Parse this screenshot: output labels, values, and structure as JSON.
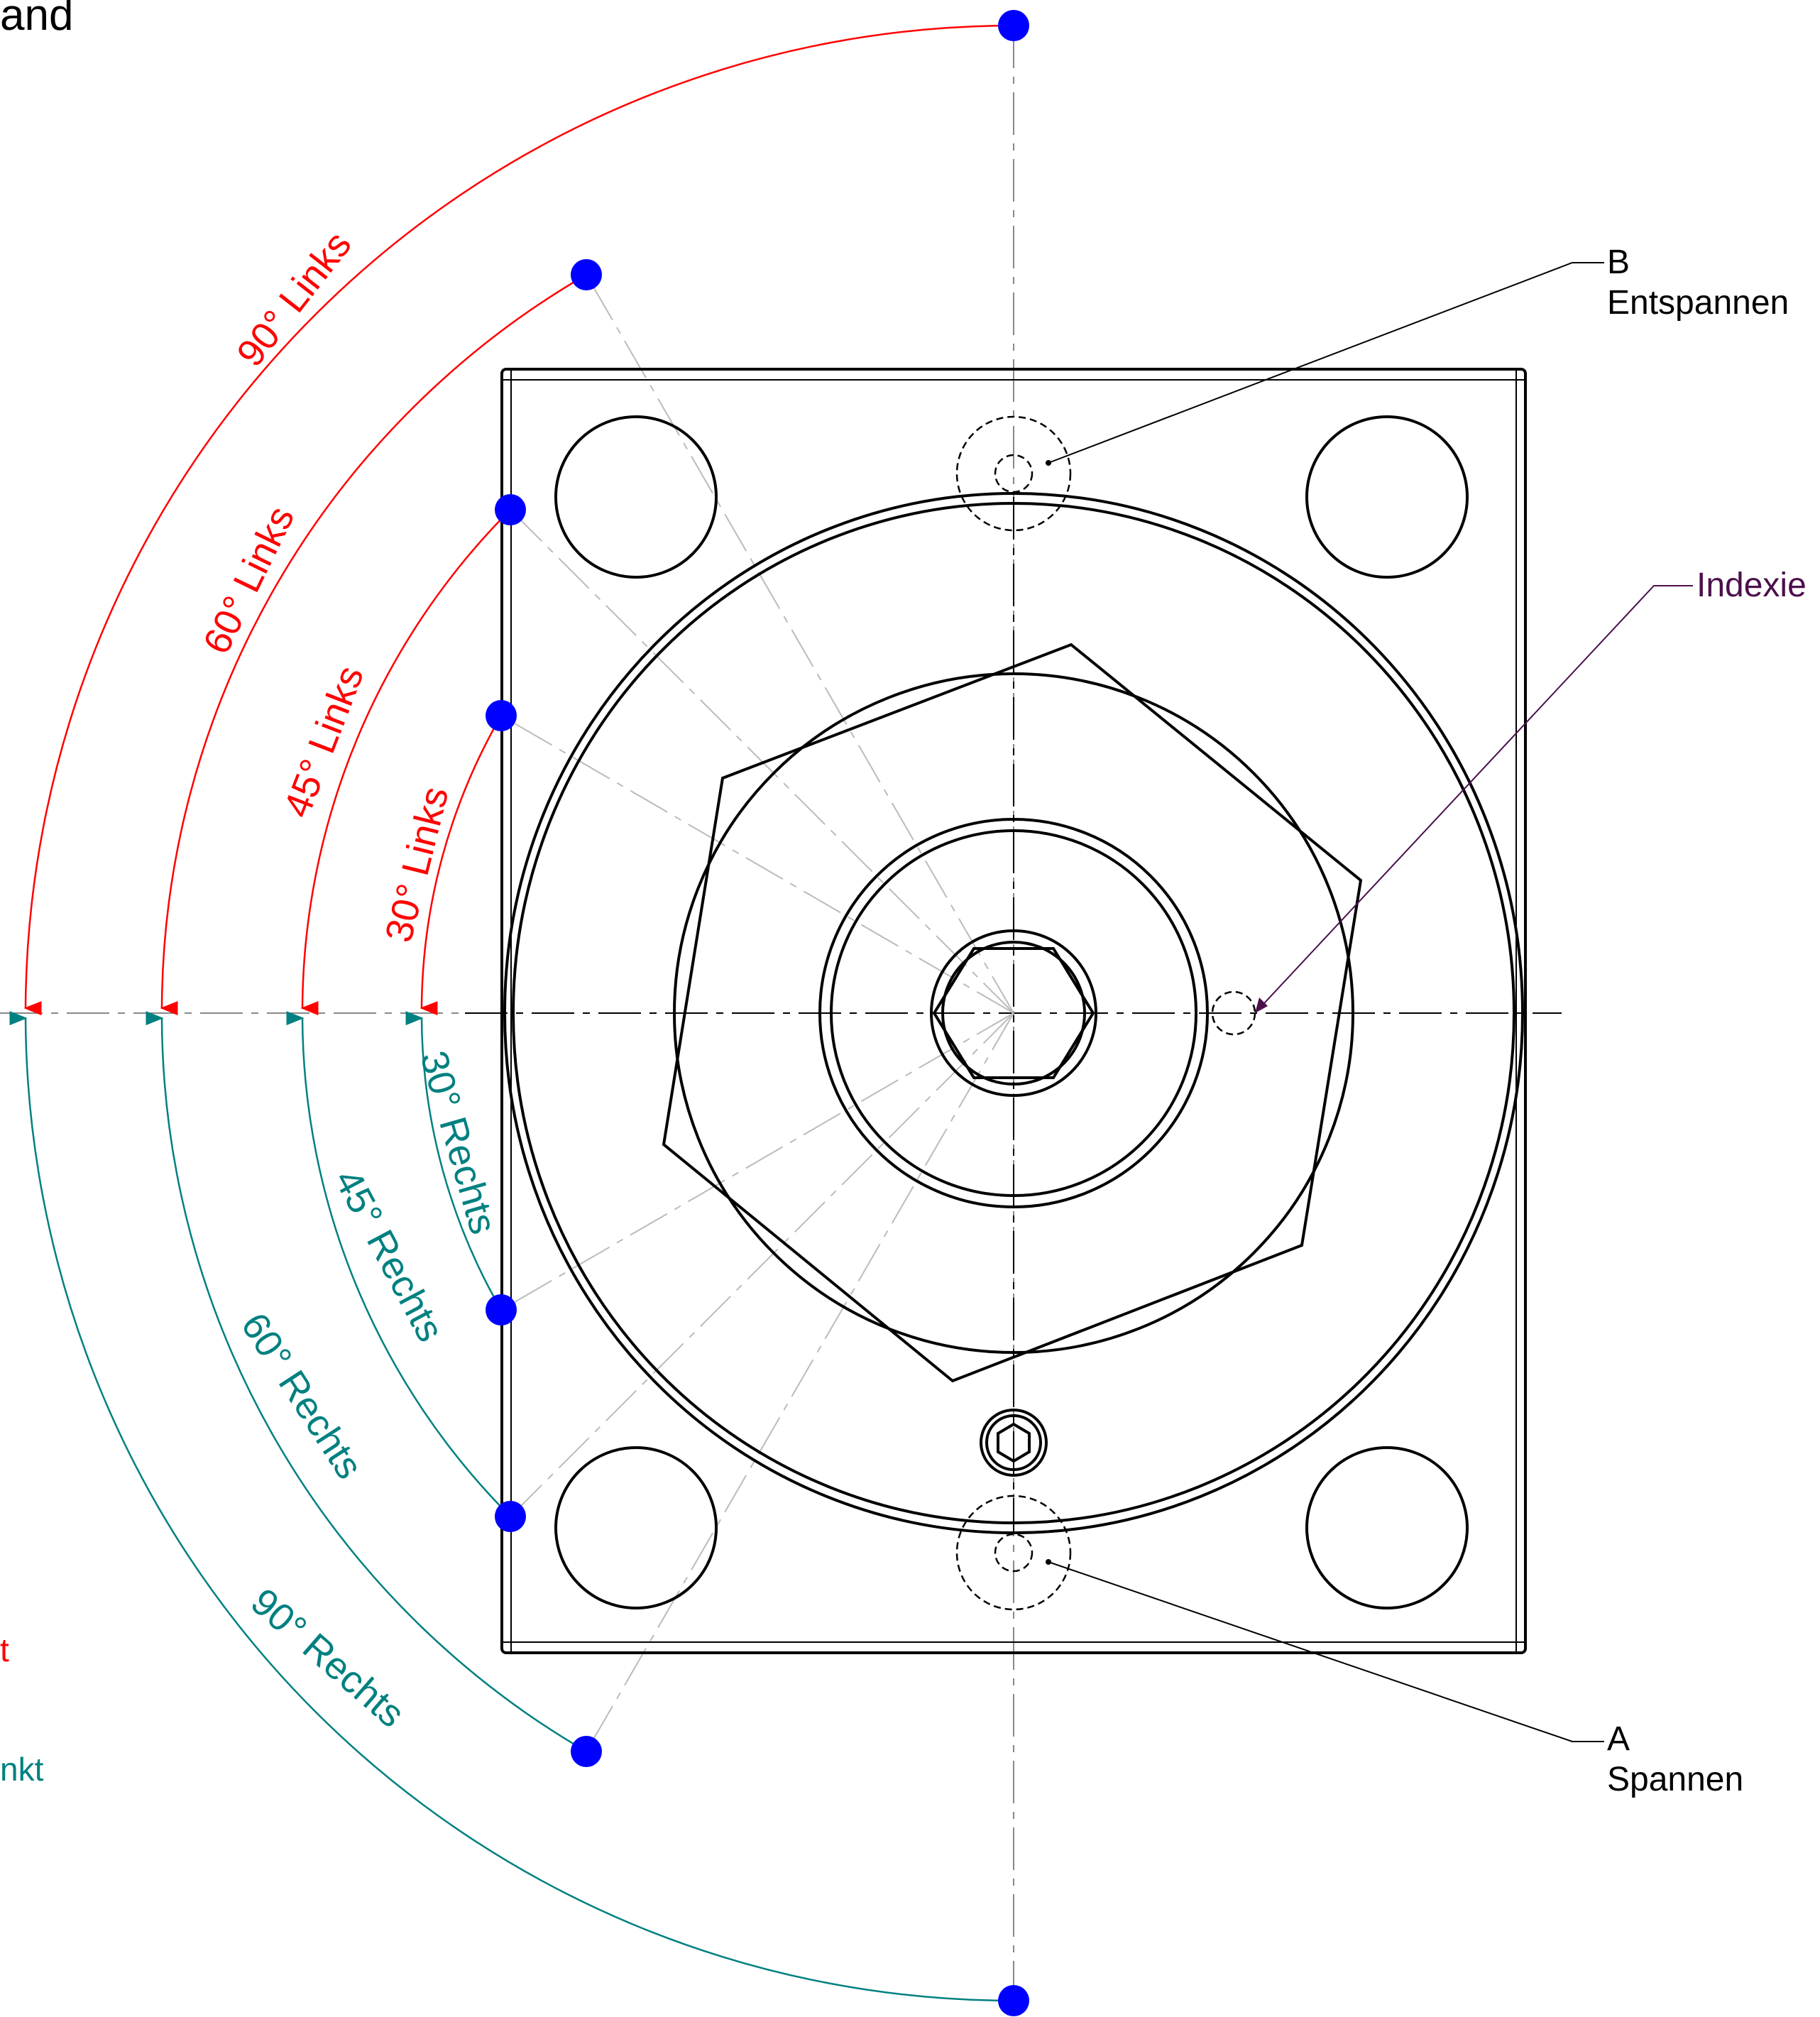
{
  "heading": {
    "fragment": "and"
  },
  "legend": {
    "left_fragment": "t",
    "right_fragment": "nkt"
  },
  "callouts": {
    "b_letter": "B",
    "b_text": "Entspannen",
    "a_letter": "A",
    "a_text": "Spannen",
    "index_text": "Indexie"
  },
  "angles": {
    "left": [
      "90° Links",
      "60° Links",
      "45° Links",
      "30° Links"
    ],
    "right": [
      "30° Rechts",
      "45° Rechts",
      "60° Rechts",
      "90° Rechts"
    ]
  },
  "colors": {
    "links": "#ff0000",
    "rechts": "#008080",
    "marker": "#0000ff",
    "index": "#4b0f4b",
    "line": "#000000",
    "center_line": "#888888"
  }
}
